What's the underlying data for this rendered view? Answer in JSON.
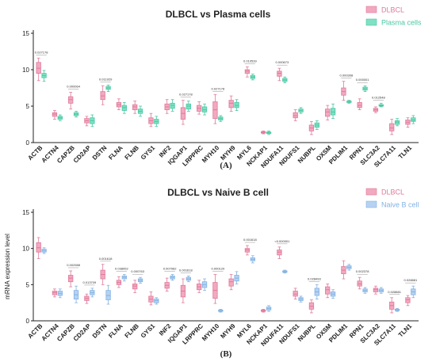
{
  "chart_data": [
    {
      "type": "boxplot",
      "title": "DLBCL vs Plasma cells",
      "panel_label": "(A)",
      "ylabel": "",
      "ylim": [
        0,
        15
      ],
      "yticks": [
        0,
        5,
        10,
        15
      ],
      "legend_position": "top-right",
      "categories": [
        "ACTB",
        "ACTN4",
        "CAPZB",
        "CD2AP",
        "DSTN",
        "FLNA",
        "FLNB",
        "GYS1",
        "INF2",
        "IQGAP1",
        "LRPPRC",
        "MYH10",
        "MYH9",
        "MYL6",
        "NCKAP1",
        "NDUFA11",
        "NDUFS1",
        "NUBPL",
        "OXSM",
        "PDLIM1",
        "RPN1",
        "SLC3A2",
        "SLC7A11",
        "TLN1"
      ],
      "series": [
        {
          "name": "DLBCL",
          "color": "#f2a9c0",
          "edge": "#e07a9a",
          "boxes": [
            [
              8.5,
              9.5,
              10.2,
              11.0,
              11.6
            ],
            [
              3.2,
              3.6,
              3.9,
              4.1,
              4.4
            ],
            [
              4.6,
              5.4,
              5.9,
              6.3,
              6.9
            ],
            [
              2.3,
              2.7,
              3.0,
              3.3,
              3.6
            ],
            [
              5.2,
              5.9,
              6.4,
              7.0,
              7.8
            ],
            [
              4.5,
              4.9,
              5.2,
              5.5,
              6.0
            ],
            [
              4.0,
              4.5,
              4.9,
              5.2,
              5.7
            ],
            [
              2.2,
              2.6,
              3.0,
              3.4,
              4.0
            ],
            [
              4.0,
              4.5,
              4.9,
              5.3,
              5.9
            ],
            [
              2.5,
              3.2,
              4.0,
              4.8,
              5.8
            ],
            [
              3.9,
              4.3,
              4.7,
              5.1,
              5.6
            ],
            [
              2.6,
              3.3,
              4.5,
              5.6,
              6.6
            ],
            [
              4.3,
              4.8,
              5.4,
              5.8,
              6.4
            ],
            [
              9.0,
              9.5,
              9.8,
              10.0,
              10.4
            ],
            [
              1.2,
              1.3,
              1.4,
              1.5,
              1.6
            ],
            [
              8.5,
              9.1,
              9.5,
              9.8,
              10.2
            ],
            [
              3.0,
              3.4,
              3.7,
              4.1,
              4.5
            ],
            [
              1.1,
              1.6,
              2.0,
              2.4,
              2.9
            ],
            [
              3.1,
              3.6,
              4.2,
              4.6,
              5.1
            ],
            [
              5.8,
              6.5,
              7.0,
              7.5,
              8.4
            ],
            [
              4.5,
              4.8,
              5.1,
              5.5,
              6.0
            ],
            [
              4.1,
              4.3,
              4.5,
              4.7,
              4.9
            ],
            [
              1.1,
              1.6,
              2.0,
              2.6,
              3.2
            ],
            [
              2.1,
              2.5,
              2.8,
              3.1,
              3.4
            ]
          ]
        },
        {
          "name": "Plasma cells",
          "color": "#7fe1c4",
          "edge": "#4cc7a3",
          "boxes": [
            [
              8.4,
              8.9,
              9.2,
              9.5,
              9.9
            ],
            [
              3.0,
              3.2,
              3.4,
              3.6,
              3.8
            ],
            [
              3.5,
              3.7,
              3.9,
              4.1,
              4.3
            ],
            [
              2.2,
              2.6,
              3.0,
              3.4,
              3.8
            ],
            [
              7.0,
              7.3,
              7.5,
              7.7,
              7.9
            ],
            [
              4.0,
              4.4,
              4.8,
              5.1,
              5.5
            ],
            [
              3.6,
              4.0,
              4.3,
              4.6,
              5.0
            ],
            [
              2.2,
              2.6,
              2.9,
              3.2,
              3.6
            ],
            [
              4.3,
              4.7,
              5.1,
              5.4,
              5.9
            ],
            [
              4.3,
              4.6,
              5.0,
              5.3,
              5.7
            ],
            [
              3.8,
              4.2,
              4.5,
              4.9,
              5.3
            ],
            [
              2.9,
              3.1,
              3.3,
              3.5,
              3.7
            ],
            [
              4.4,
              4.8,
              5.1,
              5.5,
              5.9
            ],
            [
              8.6,
              8.8,
              9.0,
              9.2,
              9.4
            ],
            [
              1.1,
              1.25,
              1.35,
              1.45,
              1.6
            ],
            [
              8.2,
              8.4,
              8.6,
              8.8,
              9.0
            ],
            [
              4.0,
              4.2,
              4.4,
              4.6,
              4.8
            ],
            [
              1.8,
              2.1,
              2.4,
              2.7,
              3.0
            ],
            [
              3.3,
              3.8,
              4.2,
              4.7,
              5.3
            ],
            [
              5.4,
              5.5,
              5.6,
              5.7,
              5.8
            ],
            [
              7.0,
              7.2,
              7.4,
              7.6,
              7.8
            ],
            [
              4.9,
              5.0,
              5.1,
              5.2,
              5.4
            ],
            [
              2.3,
              2.5,
              2.8,
              3.0,
              3.3
            ],
            [
              2.6,
              2.9,
              3.1,
              3.4,
              3.7
            ]
          ]
        }
      ],
      "annotations": [
        {
          "index": 0,
          "text": "0.027178"
        },
        {
          "index": 2,
          "text": "0.000064"
        },
        {
          "index": 4,
          "text": "0.011929"
        },
        {
          "index": 9,
          "text": "0.027178"
        },
        {
          "index": 11,
          "text": "0.027178"
        },
        {
          "index": 13,
          "text": "0.010539"
        },
        {
          "index": 15,
          "text": "0.000673"
        },
        {
          "index": 19,
          "text": "0.000308"
        },
        {
          "index": 20,
          "text": "0.000001"
        },
        {
          "index": 21,
          "text": "0.012548"
        }
      ]
    },
    {
      "type": "boxplot",
      "title": "DLBCL vs Naive B cell",
      "panel_label": "(B)",
      "ylabel": "mRNA expression level",
      "ylim": [
        0,
        15
      ],
      "yticks": [
        0,
        5,
        10,
        15
      ],
      "legend_position": "top-right",
      "categories": [
        "ACTB",
        "ACTN4",
        "CAPZB",
        "CD2AP",
        "DSTN",
        "FLNA",
        "FLNB",
        "GYS1",
        "INF2",
        "IQGAP1",
        "LRPPRC",
        "MYH10",
        "MYH9",
        "MYL6",
        "NCKAP1",
        "NDUFA11",
        "NDUFS1",
        "NUBPL",
        "OXSM",
        "PDLIM1",
        "RPN1",
        "SLC3A2",
        "SLC7A11",
        "TLN1"
      ],
      "series": [
        {
          "name": "DLBCL",
          "color": "#f2a9c0",
          "edge": "#e07a9a",
          "boxes": [
            [
              8.6,
              9.5,
              10.1,
              10.8,
              11.5
            ],
            [
              3.3,
              3.6,
              3.9,
              4.1,
              4.4
            ],
            [
              4.7,
              5.4,
              5.9,
              6.3,
              6.9
            ],
            [
              2.4,
              2.8,
              3.1,
              3.4,
              3.7
            ],
            [
              5.0,
              5.8,
              6.4,
              7.0,
              7.8
            ],
            [
              4.6,
              5.0,
              5.3,
              5.6,
              6.1
            ],
            [
              3.9,
              4.4,
              4.8,
              5.1,
              5.6
            ],
            [
              2.2,
              2.6,
              3.0,
              3.4,
              4.0
            ],
            [
              4.1,
              4.5,
              4.9,
              5.3,
              5.9
            ],
            [
              2.5,
              3.3,
              4.1,
              4.9,
              5.8
            ],
            [
              3.9,
              4.3,
              4.7,
              5.1,
              5.6
            ],
            [
              2.4,
              3.1,
              4.2,
              5.3,
              6.4
            ],
            [
              4.3,
              4.8,
              5.4,
              5.8,
              6.4
            ],
            [
              9.1,
              9.5,
              9.8,
              10.0,
              10.4
            ],
            [
              1.2,
              1.3,
              1.4,
              1.5,
              1.6
            ],
            [
              8.6,
              9.1,
              9.5,
              9.8,
              10.2
            ],
            [
              3.0,
              3.4,
              3.7,
              4.1,
              4.5
            ],
            [
              1.1,
              1.6,
              2.0,
              2.5,
              2.9
            ],
            [
              3.2,
              3.7,
              4.3,
              4.7,
              5.1
            ],
            [
              5.8,
              6.5,
              7.0,
              7.5,
              8.3
            ],
            [
              4.4,
              4.8,
              5.1,
              5.5,
              6.0
            ],
            [
              3.7,
              4.0,
              4.3,
              4.5,
              4.8
            ],
            [
              1.1,
              1.6,
              2.1,
              2.6,
              3.2
            ],
            [
              2.1,
              2.5,
              2.9,
              3.2,
              3.5
            ]
          ]
        },
        {
          "name": "Naive B cell",
          "color": "#b5d2f2",
          "edge": "#84b2e3",
          "boxes": [
            [
              9.3,
              9.5,
              9.7,
              9.9,
              10.1
            ],
            [
              3.2,
              3.5,
              3.8,
              4.1,
              4.4
            ],
            [
              2.5,
              3.0,
              3.6,
              4.2,
              4.8
            ],
            [
              3.3,
              3.6,
              3.9,
              4.2,
              4.5
            ],
            [
              2.3,
              2.9,
              3.5,
              4.2,
              4.9
            ],
            [
              5.5,
              5.8,
              6.0,
              6.2,
              6.4
            ],
            [
              5.2,
              5.4,
              5.6,
              5.8,
              6.0
            ],
            [
              2.3,
              2.5,
              2.8,
              3.0,
              3.2
            ],
            [
              5.6,
              5.8,
              6.0,
              6.2,
              6.4
            ],
            [
              5.4,
              5.6,
              5.8,
              6.0,
              6.2
            ],
            [
              4.2,
              4.6,
              5.0,
              5.4,
              5.8
            ],
            [
              1.2,
              1.3,
              1.4,
              1.5,
              1.6
            ],
            [
              5.1,
              5.5,
              5.9,
              6.3,
              6.8
            ],
            [
              8.0,
              8.3,
              8.5,
              8.7,
              9.0
            ],
            [
              1.3,
              1.5,
              1.7,
              1.9,
              2.1
            ],
            [
              6.6,
              6.7,
              6.8,
              6.9,
              7.0
            ],
            [
              2.6,
              2.8,
              3.0,
              3.2,
              3.4
            ],
            [
              3.0,
              3.5,
              4.0,
              4.5,
              5.0
            ],
            [
              3.1,
              3.4,
              3.7,
              4.0,
              4.3
            ],
            [
              7.0,
              7.2,
              7.4,
              7.6,
              7.8
            ],
            [
              3.8,
              4.0,
              4.2,
              4.4,
              4.6
            ],
            [
              3.8,
              4.0,
              4.2,
              4.4,
              4.6
            ],
            [
              1.3,
              1.4,
              1.5,
              1.6,
              1.7
            ],
            [
              3.2,
              3.6,
              4.0,
              4.4,
              4.8
            ]
          ]
        }
      ],
      "annotations": [
        {
          "index": 2,
          "text": "0.002988"
        },
        {
          "index": 3,
          "text": "0.013709"
        },
        {
          "index": 4,
          "text": "0.001618"
        },
        {
          "index": 5,
          "text": "0.038952"
        },
        {
          "index": 6,
          "text": "0.000763"
        },
        {
          "index": 8,
          "text": "0.007962"
        },
        {
          "index": 9,
          "text": "0.001618"
        },
        {
          "index": 11,
          "text": "0.000129"
        },
        {
          "index": 13,
          "text": "0.001618"
        },
        {
          "index": 15,
          "text": "<0.000001"
        },
        {
          "index": 17,
          "text": "0.028493"
        },
        {
          "index": 20,
          "text": "0.002378"
        },
        {
          "index": 22,
          "text": "0.028881"
        },
        {
          "index": 23,
          "text": "0.028881"
        }
      ]
    }
  ]
}
